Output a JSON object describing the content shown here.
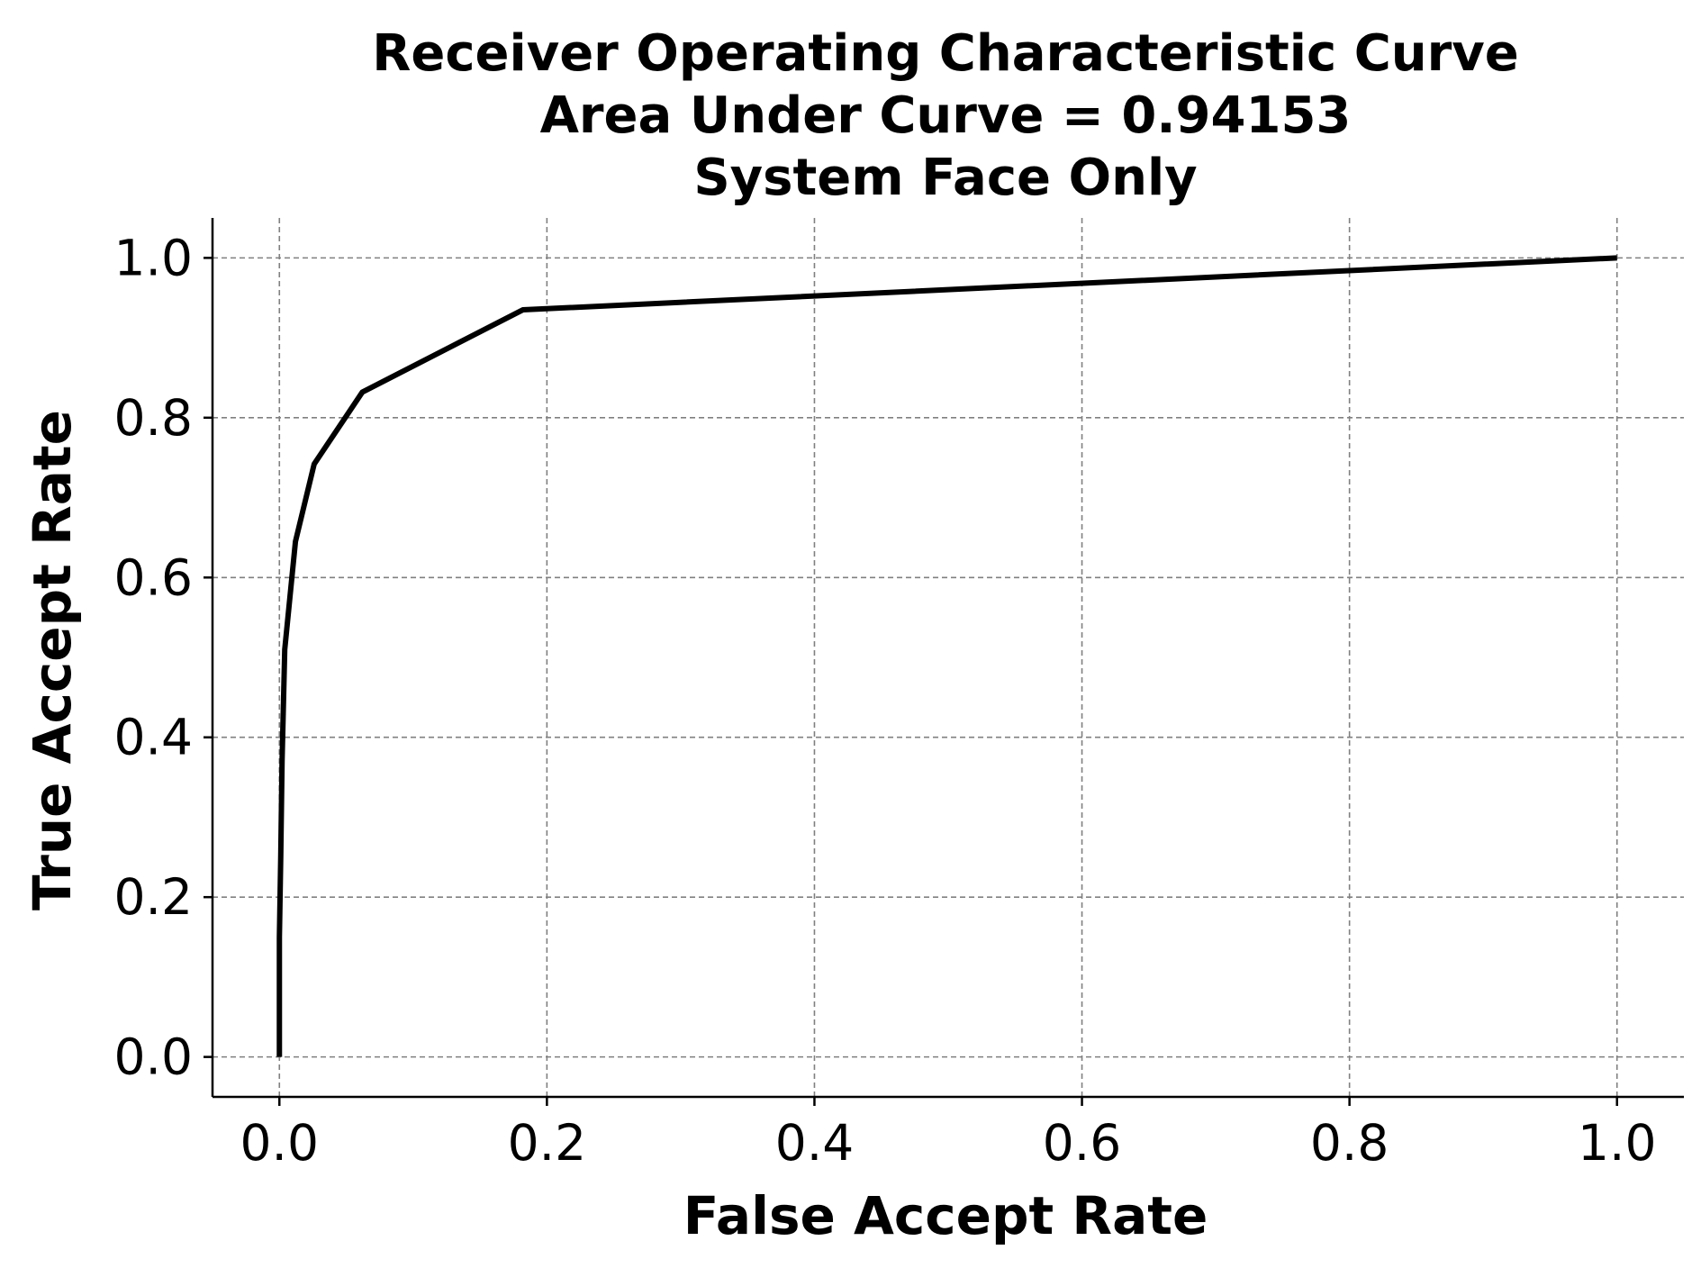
{
  "chart_data": {
    "type": "line",
    "title_lines": [
      "Receiver Operating Characteristic Curve",
      "Area Under Curve = 0.94153",
      "System Face Only"
    ],
    "xlabel": "False Accept Rate",
    "ylabel": "True Accept Rate",
    "xlim": [
      -0.05,
      1.05
    ],
    "ylim": [
      -0.05,
      1.05
    ],
    "x_ticks": [
      0.0,
      0.2,
      0.4,
      0.6,
      0.8,
      1.0
    ],
    "y_ticks": [
      0.0,
      0.2,
      0.4,
      0.6,
      0.8,
      1.0
    ],
    "x_tick_labels": [
      "0.0",
      "0.2",
      "0.4",
      "0.6",
      "0.8",
      "1.0"
    ],
    "y_tick_labels": [
      "0.0",
      "0.2",
      "0.4",
      "0.6",
      "0.8",
      "1.0"
    ],
    "grid": true,
    "grid_style": "dashed",
    "legend": "none",
    "series": [
      {
        "color": "#000000",
        "x": [
          0.0,
          0.0,
          0.001,
          0.002,
          0.004,
          0.012,
          0.026,
          0.062,
          0.182,
          1.0
        ],
        "y": [
          0.0,
          0.15,
          0.25,
          0.37,
          0.51,
          0.645,
          0.742,
          0.832,
          0.935,
          1.0
        ]
      }
    ]
  }
}
